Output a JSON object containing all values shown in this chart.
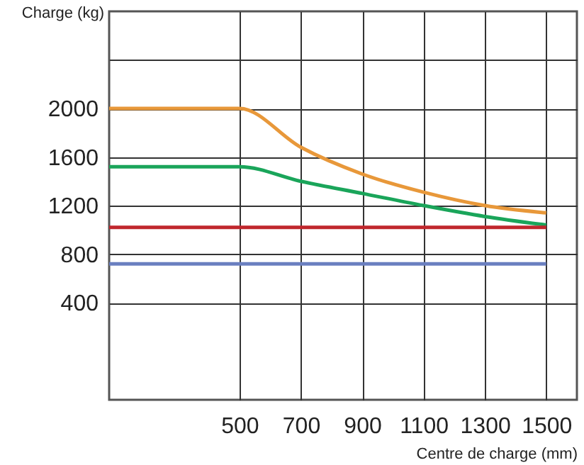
{
  "chart_data": {
    "type": "line",
    "xlabel": "Centre de charge (mm)",
    "ylabel": "Charge (kg)",
    "xlim": [
      75,
      1600
    ],
    "xticks": [
      500,
      700,
      900,
      1100,
      1300,
      1500
    ],
    "ylim": [
      -400,
      2800
    ],
    "yticks": [
      400,
      800,
      1200,
      1600,
      2000,
      {
        "value": 2400,
        "label": null
      }
    ],
    "grid": true,
    "marker": "none",
    "line_style": "solid",
    "series": [
      {
        "color": "#e8983a",
        "x": [
          75,
          500,
          700,
          900,
          1100,
          1300,
          1500
        ],
        "values": [
          2000,
          2000,
          1680,
          1460,
          1310,
          1200,
          1140
        ]
      },
      {
        "color": "#1aa55a",
        "x": [
          75,
          500,
          700,
          900,
          1100,
          1300,
          1500
        ],
        "values": [
          1520,
          1520,
          1400,
          1300,
          1200,
          1110,
          1040
        ]
      },
      {
        "color": "#c0272d",
        "x": [
          75,
          1500
        ],
        "values": [
          1020,
          1020
        ]
      },
      {
        "color": "#6a7fc0",
        "x": [
          75,
          1500
        ],
        "values": [
          720,
          720
        ]
      }
    ]
  }
}
